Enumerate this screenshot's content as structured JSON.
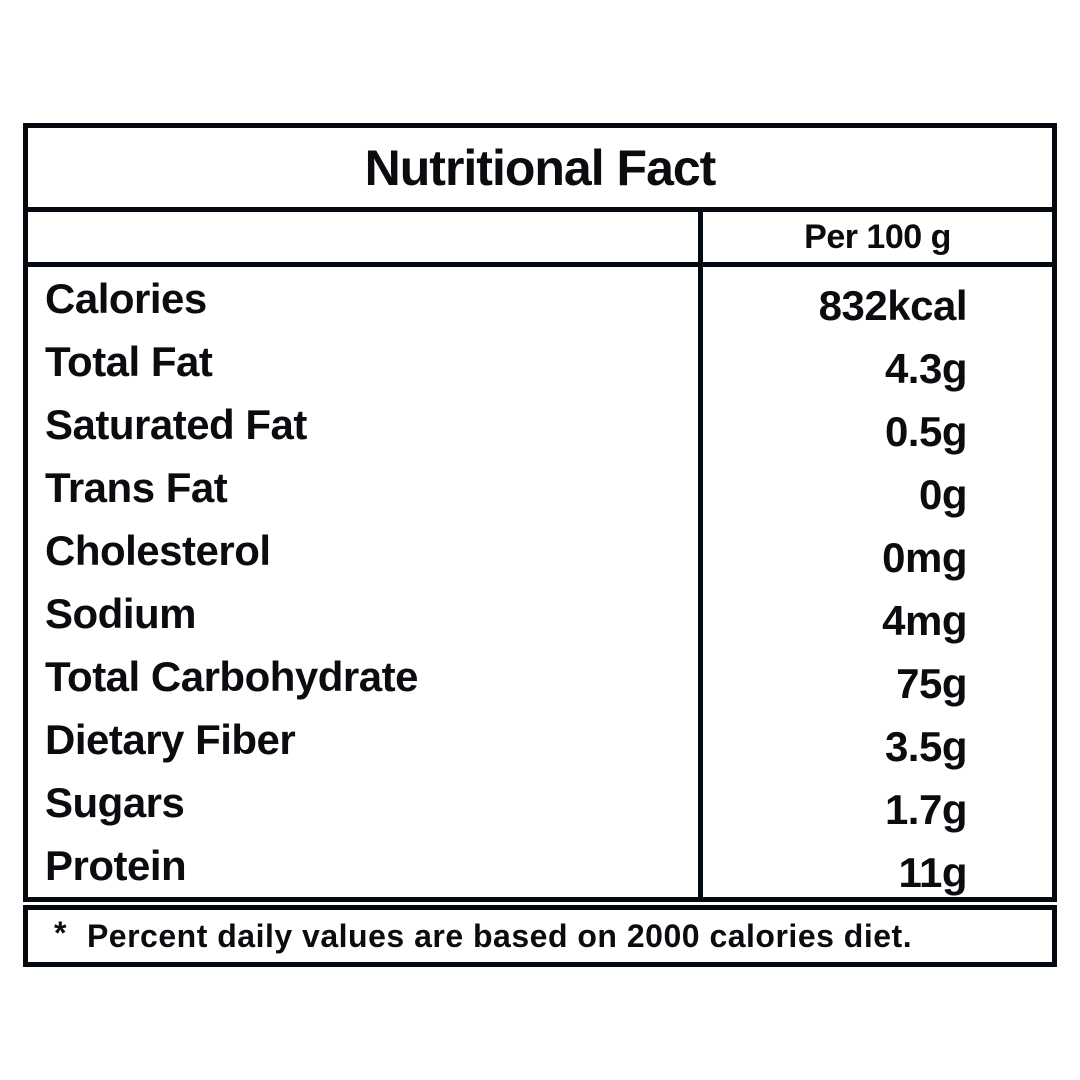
{
  "title": "Nutritional Fact",
  "header": {
    "per_label": "Per 100 g"
  },
  "rows": [
    {
      "label": "Calories",
      "value": "832kcal"
    },
    {
      "label": "Total Fat",
      "value": "4.3g"
    },
    {
      "label": "Saturated Fat",
      "value": "0.5g"
    },
    {
      "label": "Trans Fat",
      "value": "0g"
    },
    {
      "label": "Cholesterol",
      "value": "0mg"
    },
    {
      "label": "Sodium",
      "value": "4mg"
    },
    {
      "label": "Total Carbohydrate",
      "value": "75g"
    },
    {
      "label": "Dietary Fiber",
      "value": "3.5g"
    },
    {
      "label": "Sugars",
      "value": "1.7g"
    },
    {
      "label": "Protein",
      "value": "11g"
    }
  ],
  "footnote": {
    "marker": "*",
    "text": "Percent daily values are based on 2000 calories diet."
  },
  "colors": {
    "border": "#050a10",
    "text": "#0a0c10",
    "background": "#ffffff"
  }
}
